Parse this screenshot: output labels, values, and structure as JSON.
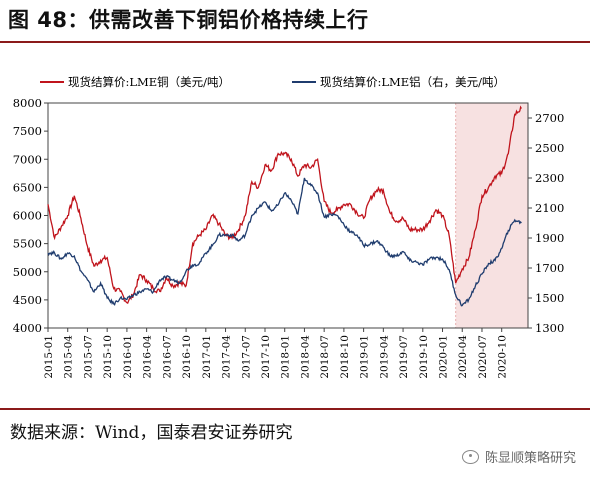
{
  "figure": {
    "title": "图 48：供需改善下铜铝价格持续上行",
    "source": "数据来源：Wind，国泰君安证券研究",
    "watermark": "陈显顺策略研究"
  },
  "colors": {
    "copper": "#c0141c",
    "aluminum": "#1f3c6e",
    "shade": "#f7e1e1",
    "rule": "#8b1a1a"
  },
  "chart_data": {
    "type": "line",
    "legend": [
      "现货结算价:LME铜（美元/吨）",
      "现货结算价:LME铝（右，美元/吨）"
    ],
    "legend_position": "top",
    "x_ticks": [
      "2015-01",
      "2015-04",
      "2015-07",
      "2015-10",
      "2016-01",
      "2016-04",
      "2016-07",
      "2016-10",
      "2017-01",
      "2017-04",
      "2017-07",
      "2017-10",
      "2018-01",
      "2018-04",
      "2018-07",
      "2018-10",
      "2019-01",
      "2019-04",
      "2019-07",
      "2019-10",
      "2020-01",
      "2020-04",
      "2020-07",
      "2020-10"
    ],
    "y_left": {
      "min": 4000,
      "max": 8000,
      "ticks": [
        4000,
        4500,
        5000,
        5500,
        6000,
        6500,
        7000,
        7500,
        8000
      ]
    },
    "y_right": {
      "min": 1300,
      "max": 2800,
      "ticks": [
        1300,
        1500,
        1700,
        1900,
        2100,
        2300,
        2500,
        2700
      ]
    },
    "x_range": [
      "2015-01",
      "2021-02"
    ],
    "shaded_region": [
      "2020-03",
      "2021-02"
    ],
    "series": [
      {
        "name": "现货结算价:LME铜（美元/吨）",
        "axis": "left",
        "points": [
          [
            "2015-01",
            6200
          ],
          [
            "2015-02",
            5600
          ],
          [
            "2015-03",
            5800
          ],
          [
            "2015-04",
            6000
          ],
          [
            "2015-05",
            6350
          ],
          [
            "2015-06",
            5950
          ],
          [
            "2015-07",
            5450
          ],
          [
            "2015-08",
            5100
          ],
          [
            "2015-09",
            5200
          ],
          [
            "2015-10",
            5250
          ],
          [
            "2015-11",
            4700
          ],
          [
            "2015-12",
            4650
          ],
          [
            "2016-01",
            4450
          ],
          [
            "2016-02",
            4600
          ],
          [
            "2016-03",
            4950
          ],
          [
            "2016-04",
            4850
          ],
          [
            "2016-05",
            4700
          ],
          [
            "2016-06",
            4650
          ],
          [
            "2016-07",
            4900
          ],
          [
            "2016-08",
            4750
          ],
          [
            "2016-09",
            4800
          ],
          [
            "2016-10",
            4750
          ],
          [
            "2016-11",
            5500
          ],
          [
            "2016-12",
            5650
          ],
          [
            "2017-01",
            5750
          ],
          [
            "2017-02",
            6000
          ],
          [
            "2017-03",
            5850
          ],
          [
            "2017-04",
            5650
          ],
          [
            "2017-05",
            5600
          ],
          [
            "2017-06",
            5750
          ],
          [
            "2017-07",
            6000
          ],
          [
            "2017-08",
            6600
          ],
          [
            "2017-09",
            6500
          ],
          [
            "2017-10",
            6900
          ],
          [
            "2017-11",
            6800
          ],
          [
            "2017-12",
            7100
          ],
          [
            "2018-01",
            7100
          ],
          [
            "2018-02",
            7000
          ],
          [
            "2018-03",
            6700
          ],
          [
            "2018-04",
            6900
          ],
          [
            "2018-05",
            6850
          ],
          [
            "2018-06",
            7000
          ],
          [
            "2018-07",
            6250
          ],
          [
            "2018-08",
            6050
          ],
          [
            "2018-09",
            6100
          ],
          [
            "2018-10",
            6200
          ],
          [
            "2018-11",
            6200
          ],
          [
            "2018-12",
            6050
          ],
          [
            "2019-01",
            5950
          ],
          [
            "2019-02",
            6300
          ],
          [
            "2019-03",
            6450
          ],
          [
            "2019-04",
            6450
          ],
          [
            "2019-05",
            6050
          ],
          [
            "2019-06",
            5900
          ],
          [
            "2019-07",
            5950
          ],
          [
            "2019-08",
            5750
          ],
          [
            "2019-09",
            5750
          ],
          [
            "2019-10",
            5750
          ],
          [
            "2019-11",
            5900
          ],
          [
            "2019-12",
            6100
          ],
          [
            "2020-01",
            6000
          ],
          [
            "2020-02",
            5650
          ],
          [
            "2020-03",
            4800
          ],
          [
            "2020-04",
            5050
          ],
          [
            "2020-05",
            5250
          ],
          [
            "2020-06",
            5750
          ],
          [
            "2020-07",
            6350
          ],
          [
            "2020-08",
            6500
          ],
          [
            "2020-09",
            6700
          ],
          [
            "2020-10",
            6750
          ],
          [
            "2020-11",
            7100
          ],
          [
            "2020-12",
            7800
          ],
          [
            "2021-01",
            7900
          ]
        ]
      },
      {
        "name": "现货结算价:LME铝（右，美元/吨）",
        "axis": "right",
        "points": [
          [
            "2015-01",
            1800
          ],
          [
            "2015-02",
            1800
          ],
          [
            "2015-03",
            1760
          ],
          [
            "2015-04",
            1800
          ],
          [
            "2015-05",
            1780
          ],
          [
            "2015-06",
            1680
          ],
          [
            "2015-07",
            1620
          ],
          [
            "2015-08",
            1540
          ],
          [
            "2015-09",
            1600
          ],
          [
            "2015-10",
            1500
          ],
          [
            "2015-11",
            1460
          ],
          [
            "2015-12",
            1500
          ],
          [
            "2016-01",
            1490
          ],
          [
            "2016-02",
            1520
          ],
          [
            "2016-03",
            1540
          ],
          [
            "2016-04",
            1560
          ],
          [
            "2016-05",
            1540
          ],
          [
            "2016-06",
            1620
          ],
          [
            "2016-07",
            1640
          ],
          [
            "2016-08",
            1620
          ],
          [
            "2016-09",
            1600
          ],
          [
            "2016-10",
            1680
          ],
          [
            "2016-11",
            1720
          ],
          [
            "2016-12",
            1730
          ],
          [
            "2017-01",
            1800
          ],
          [
            "2017-02",
            1850
          ],
          [
            "2017-03",
            1920
          ],
          [
            "2017-04",
            1920
          ],
          [
            "2017-05",
            1920
          ],
          [
            "2017-06",
            1880
          ],
          [
            "2017-07",
            1920
          ],
          [
            "2017-08",
            2050
          ],
          [
            "2017-09",
            2100
          ],
          [
            "2017-10",
            2140
          ],
          [
            "2017-11",
            2080
          ],
          [
            "2017-12",
            2120
          ],
          [
            "2018-01",
            2200
          ],
          [
            "2018-02",
            2150
          ],
          [
            "2018-03",
            2060
          ],
          [
            "2018-04",
            2300
          ],
          [
            "2018-05",
            2250
          ],
          [
            "2018-06",
            2200
          ],
          [
            "2018-07",
            2040
          ],
          [
            "2018-08",
            2060
          ],
          [
            "2018-09",
            2050
          ],
          [
            "2018-10",
            1990
          ],
          [
            "2018-11",
            1940
          ],
          [
            "2018-12",
            1920
          ],
          [
            "2019-01",
            1850
          ],
          [
            "2019-02",
            1860
          ],
          [
            "2019-03",
            1880
          ],
          [
            "2019-04",
            1840
          ],
          [
            "2019-05",
            1780
          ],
          [
            "2019-06",
            1780
          ],
          [
            "2019-07",
            1810
          ],
          [
            "2019-08",
            1750
          ],
          [
            "2019-09",
            1740
          ],
          [
            "2019-10",
            1720
          ],
          [
            "2019-11",
            1760
          ],
          [
            "2019-12",
            1770
          ],
          [
            "2020-01",
            1760
          ],
          [
            "2020-02",
            1690
          ],
          [
            "2020-03",
            1520
          ],
          [
            "2020-04",
            1450
          ],
          [
            "2020-05",
            1490
          ],
          [
            "2020-06",
            1580
          ],
          [
            "2020-07",
            1660
          ],
          [
            "2020-08",
            1730
          ],
          [
            "2020-09",
            1750
          ],
          [
            "2020-10",
            1830
          ],
          [
            "2020-11",
            1950
          ],
          [
            "2020-12",
            2020
          ],
          [
            "2021-01",
            2000
          ]
        ]
      }
    ]
  }
}
